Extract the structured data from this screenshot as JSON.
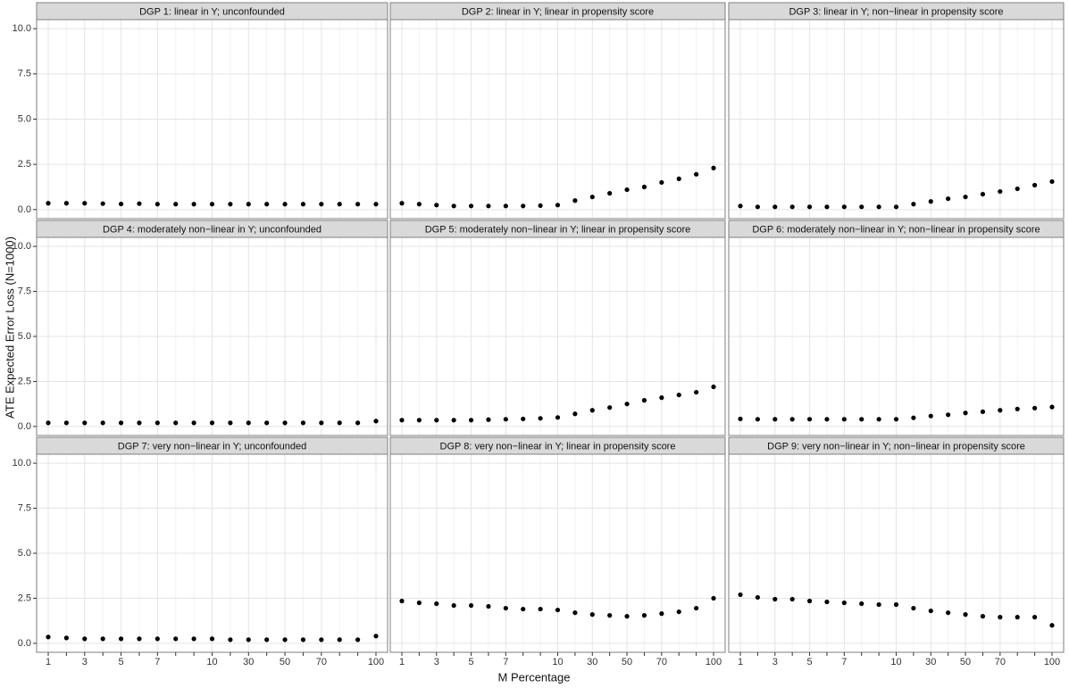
{
  "axes": {
    "categories": [
      "1",
      null,
      "3",
      null,
      "5",
      null,
      "7",
      null,
      null,
      "10",
      null,
      "30",
      null,
      "50",
      null,
      "70",
      null,
      null,
      "100"
    ],
    "ylim": [
      -0.5,
      10.5
    ],
    "yticks": [
      {
        "value": 0,
        "label": "0.0"
      },
      {
        "value": 2.5,
        "label": "2.5"
      },
      {
        "value": 5,
        "label": "5.0"
      },
      {
        "value": 7.5,
        "label": "7.5"
      },
      {
        "value": 10,
        "label": "10.0"
      }
    ],
    "x_label": "M Percentage",
    "y_label": "ATE Expected Error Loss (N=1000)",
    "grid": true,
    "color": "#000000"
  },
  "chart_data": [
    {
      "type": "scatter",
      "title": "DGP 1: linear in Y; unconfounded",
      "values": [
        0.35,
        0.35,
        0.35,
        0.33,
        0.31,
        0.33,
        0.3,
        0.3,
        0.3,
        0.3,
        0.3,
        0.3,
        0.3,
        0.3,
        0.3,
        0.3,
        0.3,
        0.3,
        0.3
      ]
    },
    {
      "type": "scatter",
      "title": "DGP 2: linear in Y; linear in propensity score",
      "values": [
        0.35,
        0.3,
        0.25,
        0.2,
        0.2,
        0.2,
        0.2,
        0.2,
        0.22,
        0.25,
        0.5,
        0.7,
        0.9,
        1.1,
        1.25,
        1.5,
        1.7,
        1.95,
        2.3
      ]
    },
    {
      "type": "scatter",
      "title": "DGP 3: linear in Y; non−linear in propensity score",
      "values": [
        0.2,
        0.15,
        0.15,
        0.15,
        0.15,
        0.15,
        0.15,
        0.15,
        0.15,
        0.15,
        0.3,
        0.45,
        0.6,
        0.7,
        0.85,
        1.0,
        1.15,
        1.35,
        1.55
      ]
    },
    {
      "type": "scatter",
      "title": "DGP 4: moderately non−linear in Y; unconfounded",
      "values": [
        0.2,
        0.2,
        0.2,
        0.2,
        0.2,
        0.2,
        0.2,
        0.2,
        0.2,
        0.2,
        0.2,
        0.2,
        0.2,
        0.2,
        0.2,
        0.2,
        0.2,
        0.2,
        0.3
      ]
    },
    {
      "type": "scatter",
      "title": "DGP 5: moderately non−linear in Y; linear in propensity score",
      "values": [
        0.35,
        0.35,
        0.35,
        0.35,
        0.35,
        0.38,
        0.4,
        0.42,
        0.45,
        0.5,
        0.7,
        0.9,
        1.05,
        1.25,
        1.45,
        1.6,
        1.75,
        1.9,
        2.2
      ]
    },
    {
      "type": "scatter",
      "title": "DGP 6: moderately non−linear in Y; non−linear in propensity score",
      "values": [
        0.42,
        0.4,
        0.4,
        0.4,
        0.4,
        0.4,
        0.4,
        0.4,
        0.4,
        0.4,
        0.48,
        0.58,
        0.65,
        0.75,
        0.82,
        0.9,
        0.97,
        1.02,
        1.08
      ]
    },
    {
      "type": "scatter",
      "title": "DGP 7: very non−linear in Y; unconfounded",
      "values": [
        0.35,
        0.3,
        0.25,
        0.25,
        0.25,
        0.25,
        0.25,
        0.25,
        0.25,
        0.25,
        0.2,
        0.2,
        0.2,
        0.2,
        0.2,
        0.2,
        0.2,
        0.2,
        0.4
      ]
    },
    {
      "type": "scatter",
      "title": "DGP 8: very non−linear in Y; linear in propensity score",
      "values": [
        2.35,
        2.25,
        2.2,
        2.1,
        2.1,
        2.05,
        1.95,
        1.9,
        1.9,
        1.85,
        1.7,
        1.6,
        1.55,
        1.5,
        1.55,
        1.65,
        1.75,
        1.95,
        2.5
      ]
    },
    {
      "type": "scatter",
      "title": "DGP 9: very non−linear in Y; non−linear in propensity score",
      "values": [
        2.7,
        2.55,
        2.45,
        2.45,
        2.35,
        2.3,
        2.25,
        2.2,
        2.15,
        2.15,
        1.95,
        1.8,
        1.7,
        1.6,
        1.5,
        1.45,
        1.45,
        1.45,
        1.0
      ]
    }
  ]
}
